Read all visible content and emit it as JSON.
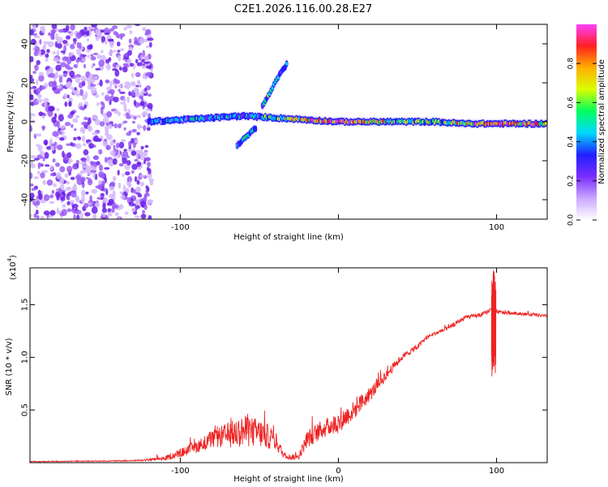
{
  "figure_title": "C2E1.2026.116.00.28.E27",
  "chart_data": [
    {
      "type": "heatmap",
      "title": "C2E1.2026.116.00.28.E27",
      "xlabel": "Height of straight line (km)",
      "ylabel": "Frequency (Hz)",
      "xlim": [
        -195,
        132
      ],
      "ylim": [
        -50,
        50
      ],
      "xticks": [
        -100,
        0,
        100
      ],
      "xtick_labels": [
        "-100",
        "",
        "100"
      ],
      "yticks": [
        -40,
        -20,
        0,
        20,
        40
      ],
      "ytick_labels": [
        "-40",
        "-20",
        "0",
        "20",
        "40"
      ],
      "colorbar": {
        "label": "Normalized spectral amplitude",
        "range": [
          0,
          1
        ],
        "ticks": [
          0,
          0.2,
          0.4,
          0.6,
          0.8
        ],
        "tick_labels": [
          "0.0",
          "0.2",
          "0.4",
          "0.6",
          "0.8"
        ],
        "colormap": [
          "#ffffff",
          "#c9a8ff",
          "#7b2cff",
          "#2020ff",
          "#00d8ff",
          "#00ff60",
          "#d8ff00",
          "#ffb000",
          "#ff2020",
          "#ff40ff"
        ]
      },
      "noise_region_x": [
        -195,
        -118
      ],
      "features": [
        {
          "name": "main_band",
          "x": [
            -120,
            -80,
            -60,
            -40,
            -20,
            0,
            20,
            40,
            60,
            80,
            100,
            132
          ],
          "freq": [
            0,
            2,
            3,
            2,
            1,
            0,
            0,
            0,
            0,
            -1,
            -1,
            -1
          ],
          "amplitude": [
            0.3,
            0.4,
            0.4,
            0.5,
            0.7,
            0.9,
            0.8,
            0.5,
            0.5,
            0.7,
            0.9,
            0.7
          ]
        },
        {
          "name": "upper_branch",
          "x": [
            -48,
            -44,
            -40,
            -36,
            -32
          ],
          "freq": [
            8,
            14,
            20,
            26,
            30
          ],
          "amplitude": [
            0.4,
            0.45,
            0.5,
            0.45,
            0.3
          ]
        },
        {
          "name": "lower_branch",
          "x": [
            -64,
            -60,
            -56,
            -52
          ],
          "freq": [
            -12,
            -9,
            -6,
            -3
          ],
          "amplitude": [
            0.35,
            0.4,
            0.45,
            0.4
          ]
        }
      ]
    },
    {
      "type": "line",
      "xlabel": "Height of straight line (km)",
      "ylabel": "SNR (10 * v/v)",
      "y_multiplier_label": "(x10",
      "y_multiplier_exp": "4",
      "xlim": [
        -195,
        132
      ],
      "ylim": [
        0,
        18500
      ],
      "xticks": [
        -100,
        0,
        100
      ],
      "xtick_labels": [
        "-100",
        "0",
        "100"
      ],
      "yticks": [
        5000,
        10000,
        15000
      ],
      "ytick_labels": [
        "0.5",
        "1.0",
        "1.5"
      ],
      "color": "#ee2222",
      "series": [
        {
          "name": "SNR",
          "x": [
            -195,
            -150,
            -125,
            -110,
            -100,
            -90,
            -80,
            -70,
            -60,
            -50,
            -40,
            -35,
            -30,
            -25,
            -20,
            -10,
            0,
            10,
            20,
            30,
            40,
            50,
            55,
            60,
            70,
            80,
            90,
            95,
            98,
            100,
            110,
            120,
            132
          ],
          "y": [
            100,
            150,
            200,
            400,
            900,
            1500,
            2200,
            2600,
            3000,
            2800,
            2200,
            800,
            500,
            600,
            2200,
            3200,
            3800,
            5000,
            6500,
            8300,
            10000,
            11000,
            11800,
            12200,
            12800,
            13800,
            14000,
            14400,
            14600,
            14300,
            14200,
            14100,
            13900
          ],
          "noise_amp": [
            30,
            40,
            60,
            200,
            400,
            600,
            800,
            1200,
            1500,
            1400,
            1000,
            300,
            250,
            300,
            800,
            900,
            1000,
            900,
            700,
            500,
            300,
            250,
            200,
            200,
            200,
            200,
            200,
            200,
            200,
            200,
            150,
            150,
            150
          ]
        }
      ],
      "spike": {
        "x": 98,
        "y_max": 18500,
        "y_min": 7800
      }
    }
  ]
}
